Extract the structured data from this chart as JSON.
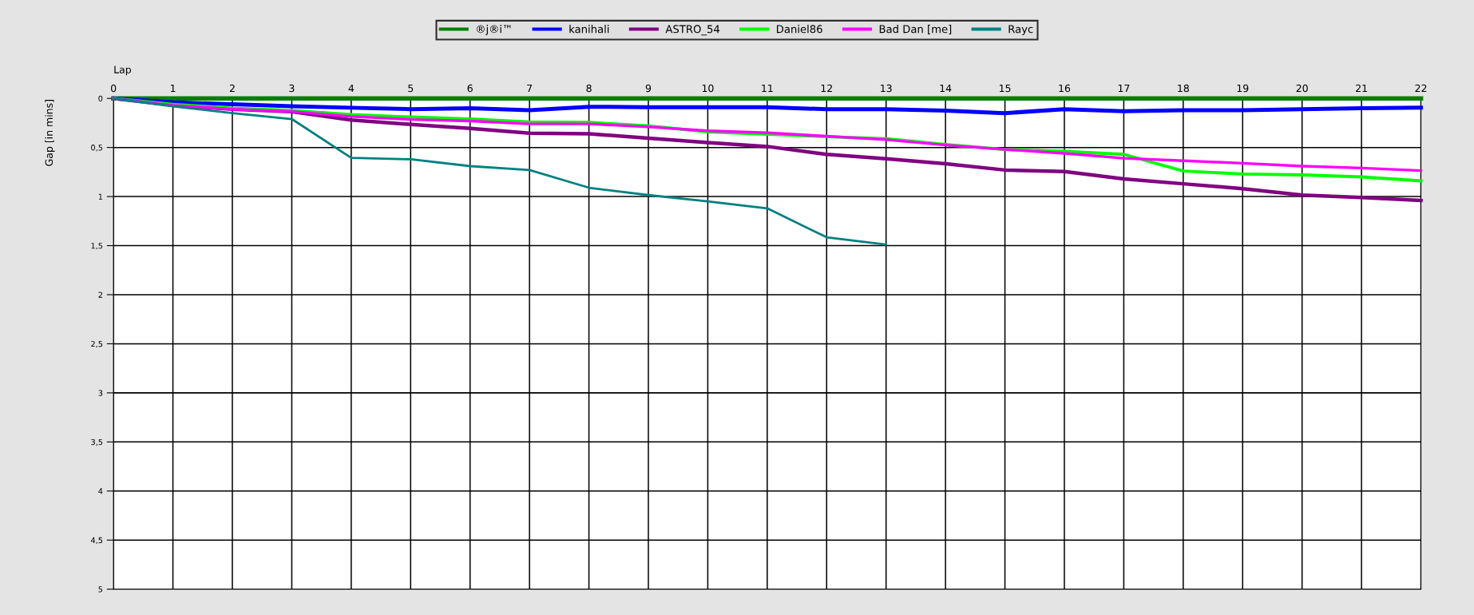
{
  "chart_data": {
    "type": "line",
    "xlabel": "Lap",
    "ylabel": "Gap [in mins]",
    "x": [
      0,
      1,
      2,
      3,
      4,
      5,
      6,
      7,
      8,
      9,
      10,
      11,
      12,
      13,
      14,
      15,
      16,
      17,
      18,
      19,
      20,
      21,
      22
    ],
    "xlim": [
      0,
      22
    ],
    "xticks": [
      0,
      1,
      2,
      3,
      4,
      5,
      6,
      7,
      8,
      9,
      10,
      11,
      12,
      13,
      14,
      15,
      16,
      17,
      18,
      19,
      20,
      21,
      22
    ],
    "ylim": [
      5,
      0
    ],
    "yticks": [
      0,
      {
        "value": 0.5,
        "label": "0,5"
      },
      1,
      {
        "value": 1.5,
        "label": "1,5"
      },
      2,
      {
        "value": 2.5,
        "label": "2,5"
      },
      3,
      {
        "value": 3.5,
        "label": "3,5"
      },
      4,
      {
        "value": 4.5,
        "label": "4,5"
      },
      5
    ],
    "grid": true,
    "legend": "top",
    "marker": "none",
    "line_style": "solid",
    "series": [
      {
        "name": "®j®i™",
        "color": "#007f00",
        "values": [
          0,
          0,
          0,
          0,
          0,
          0,
          0,
          0,
          0,
          0,
          0,
          0,
          0,
          0,
          0,
          0,
          0,
          0,
          0,
          0,
          0,
          0,
          0
        ]
      },
      {
        "name": "kanihali",
        "color": "#0000ff",
        "values": [
          0,
          0.04,
          0.06,
          0.08,
          0.095,
          0.11,
          0.1,
          0.12,
          0.085,
          0.09,
          0.09,
          0.09,
          0.11,
          0.11,
          0.125,
          0.15,
          0.11,
          0.13,
          0.12,
          0.12,
          0.11,
          0.1,
          0.095
        ]
      },
      {
        "name": "ASTRO_54",
        "color": "#800080",
        "values": [
          0,
          0.07,
          0.11,
          0.135,
          0.22,
          0.265,
          0.305,
          0.355,
          0.36,
          0.405,
          0.45,
          0.49,
          0.57,
          0.615,
          0.665,
          0.73,
          0.745,
          0.82,
          0.87,
          0.92,
          0.985,
          1.01,
          1.04
        ]
      },
      {
        "name": "Daniel86",
        "color": "#00ff00",
        "values": [
          0,
          0.06,
          0.1,
          0.125,
          0.165,
          0.19,
          0.21,
          0.24,
          0.245,
          0.28,
          0.34,
          0.365,
          0.39,
          0.41,
          0.47,
          0.52,
          0.54,
          0.57,
          0.74,
          0.77,
          0.78,
          0.8,
          0.84
        ]
      },
      {
        "name": "Bad Dan [me]",
        "color": "#ff00ff",
        "values": [
          0,
          0.07,
          0.11,
          0.133,
          0.185,
          0.215,
          0.23,
          0.26,
          0.26,
          0.29,
          0.33,
          0.35,
          0.385,
          0.42,
          0.475,
          0.52,
          0.56,
          0.61,
          0.635,
          0.66,
          0.69,
          0.71,
          0.735
        ]
      },
      {
        "name": "Rayc",
        "color": "#008080",
        "values": [
          0,
          0.08,
          0.15,
          0.21,
          0.605,
          0.62,
          0.69,
          0.73,
          0.91,
          0.985,
          1.05,
          1.12,
          1.415,
          1.49,
          null,
          null,
          null,
          null,
          null,
          null,
          null,
          null,
          null
        ]
      }
    ]
  }
}
